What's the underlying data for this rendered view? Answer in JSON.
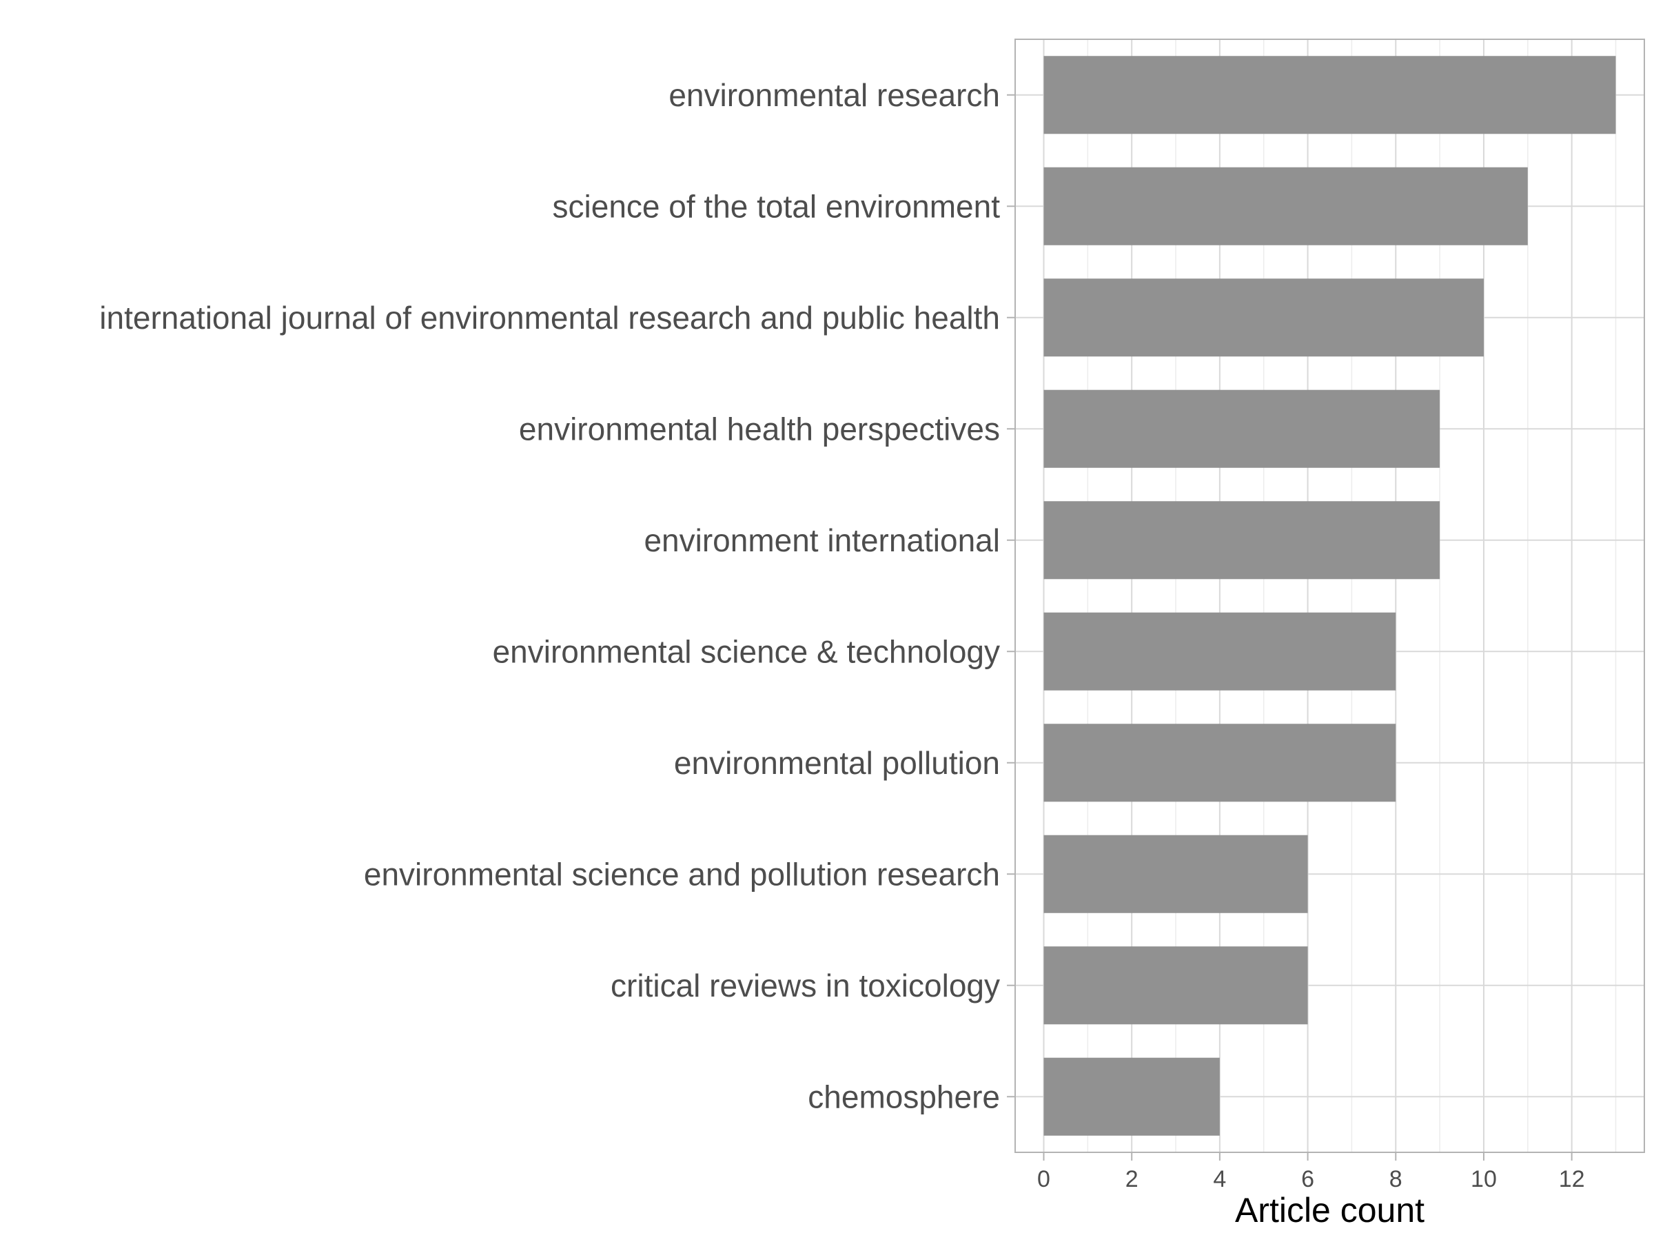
{
  "chart_data": {
    "type": "bar",
    "orientation": "horizontal",
    "title": "",
    "xlabel": "Article count",
    "ylabel": "",
    "categories": [
      "environmental research",
      "science of the total environment",
      "international journal of environmental research and public health",
      "environmental health perspectives",
      "environment international",
      "environmental science & technology",
      "environmental pollution",
      "environmental science and pollution research",
      "critical reviews in toxicology",
      "chemosphere"
    ],
    "values": [
      13,
      11,
      10,
      9,
      9,
      8,
      8,
      6,
      6,
      4
    ],
    "xlim": [
      -0.65,
      13.65
    ],
    "xticks": [
      0,
      2,
      4,
      6,
      8,
      10,
      12
    ],
    "xtick_labels": [
      "0",
      "2",
      "4",
      "6",
      "8",
      "10",
      "12"
    ],
    "grid": true,
    "legend": "none",
    "colors": {
      "bar": "#919191",
      "grid_major": "#d9d9d9",
      "grid_minor": "#ececec",
      "panel_border": "#b3b3b3",
      "label": "#4d4d4d",
      "title": "#000000"
    }
  }
}
